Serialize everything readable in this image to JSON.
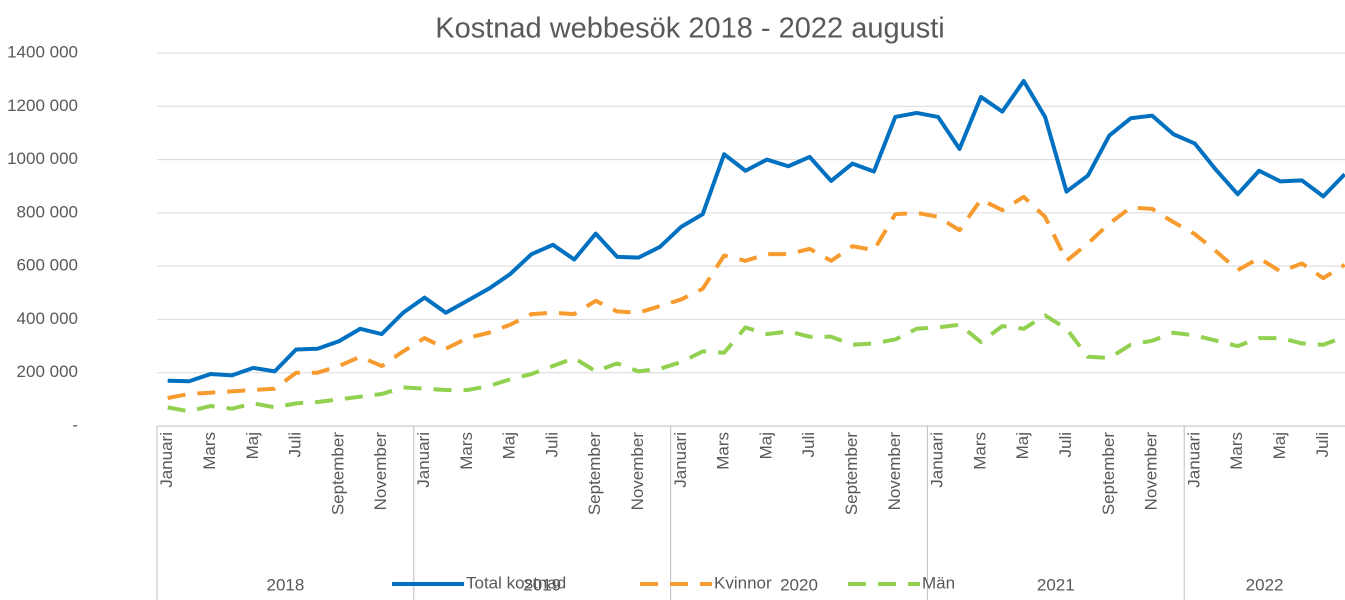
{
  "chart_data": {
    "type": "line",
    "title": "Kostnad webbesök 2018 - 2022 augusti",
    "categories": [
      "Januari",
      null,
      "Mars",
      null,
      "Maj",
      null,
      "Juli",
      null,
      "September",
      null,
      "November",
      null,
      "Januari",
      null,
      "Mars",
      null,
      "Maj",
      null,
      "Juli",
      null,
      "September",
      null,
      "November",
      null,
      "Januari",
      null,
      "Mars",
      null,
      "Maj",
      null,
      "Juli",
      null,
      "September",
      null,
      "November",
      null,
      "Januari",
      null,
      "Mars",
      null,
      "Maj",
      null,
      "Juli",
      null,
      "September",
      null,
      "November",
      null,
      "Januari",
      null,
      "Mars",
      null,
      "Maj",
      null,
      "Juli",
      null
    ],
    "groups": [
      "2018",
      "2019",
      "2020",
      "2021",
      "2022"
    ],
    "series": [
      {
        "name": "Total kostnad",
        "color": "#0070c0",
        "dash": "none",
        "values": [
          170000,
          168000,
          195000,
          190000,
          218000,
          205000,
          287000,
          290000,
          318000,
          365000,
          345000,
          425000,
          482000,
          425000,
          470000,
          515000,
          570000,
          645000,
          680000,
          625000,
          722000,
          635000,
          632000,
          672000,
          748000,
          795000,
          1020000,
          958000,
          1000000,
          975000,
          1010000,
          920000,
          985000,
          955000,
          1160000,
          1175000,
          1160000,
          1040000,
          1235000,
          1180000,
          1295000,
          1160000,
          880000,
          940000,
          1090000,
          1155000,
          1165000,
          1095000,
          1060000,
          960000,
          870000,
          958000,
          918000,
          922000,
          862000,
          945000
        ]
      },
      {
        "name": "Kvinnor",
        "color": "#f79b2e",
        "dash": "dashed",
        "values": [
          105000,
          120000,
          125000,
          130000,
          135000,
          140000,
          200000,
          200000,
          225000,
          260000,
          225000,
          280000,
          330000,
          290000,
          330000,
          350000,
          380000,
          420000,
          425000,
          420000,
          470000,
          430000,
          425000,
          450000,
          475000,
          515000,
          640000,
          620000,
          645000,
          645000,
          665000,
          620000,
          675000,
          660000,
          795000,
          800000,
          785000,
          735000,
          850000,
          810000,
          860000,
          785000,
          620000,
          685000,
          760000,
          820000,
          815000,
          765000,
          720000,
          655000,
          585000,
          630000,
          580000,
          610000,
          555000,
          605000
        ]
      },
      {
        "name": "Män",
        "color": "#92d050",
        "dash": "dashed",
        "values": [
          70000,
          55000,
          75000,
          65000,
          85000,
          70000,
          85000,
          90000,
          100000,
          110000,
          120000,
          145000,
          140000,
          135000,
          135000,
          150000,
          175000,
          195000,
          225000,
          255000,
          205000,
          235000,
          205000,
          215000,
          240000,
          280000,
          275000,
          370000,
          345000,
          355000,
          335000,
          335000,
          305000,
          310000,
          325000,
          365000,
          370000,
          380000,
          315000,
          375000,
          365000,
          415000,
          365000,
          260000,
          255000,
          305000,
          320000,
          350000,
          340000,
          320000,
          300000,
          330000,
          330000,
          310000,
          305000,
          335000
        ]
      }
    ],
    "ylim": [
      0,
      1400000
    ],
    "yticks": [
      {
        "value": 0,
        "label": "-"
      },
      {
        "value": 200000,
        "label": "200 000"
      },
      {
        "value": 400000,
        "label": "400 000"
      },
      {
        "value": 600000,
        "label": "600 000"
      },
      {
        "value": 800000,
        "label": "800 000"
      },
      {
        "value": 1000000,
        "label": "1000 000"
      },
      {
        "value": 1200000,
        "label": "1200 000"
      },
      {
        "value": 1400000,
        "label": "1400 000"
      }
    ],
    "grid": true,
    "legend": "bottom"
  }
}
